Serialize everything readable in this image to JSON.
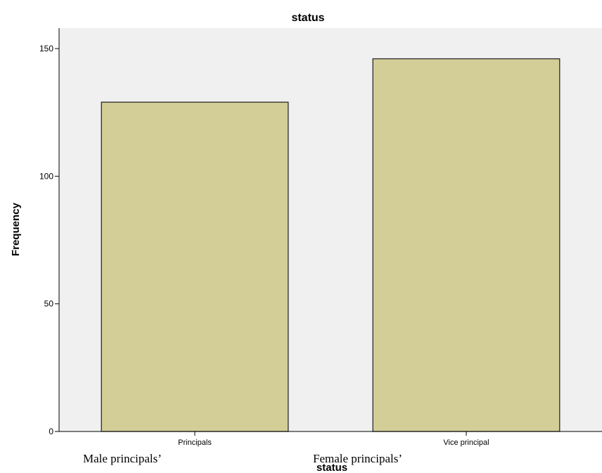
{
  "chart_data": {
    "type": "bar",
    "title": "status",
    "xlabel": "status",
    "ylabel": "Frequency",
    "categories": [
      "Principals",
      "Vice principal"
    ],
    "values": [
      129,
      146
    ],
    "ylim": [
      0,
      158
    ],
    "yticks": [
      0,
      50,
      100,
      150
    ],
    "grid": false,
    "colors": {
      "plot_background": "#f0f0f0",
      "bar_fill": "#d3ce97",
      "bar_stroke": "#2a2a2a"
    }
  },
  "annotations": [
    "Male principals’",
    "Female principals’"
  ]
}
